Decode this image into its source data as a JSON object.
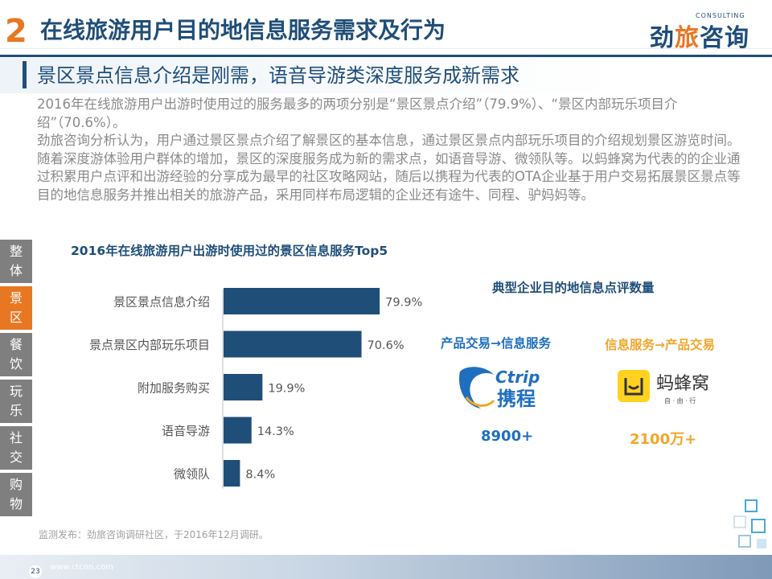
{
  "header": {
    "section_number": "2",
    "title": "在线旅游用户目的地信息服务需求及行为",
    "logo_text_a": "劲",
    "logo_text_b": "旅",
    "logo_text_c": "咨询",
    "logo_en": "CONSULTING"
  },
  "subtitle": "景区景点信息介绍是刚需，语音导游类深度服务成新需求",
  "body_paragraphs": [
    "2016年在线旅游用户出游时使用过的服务最多的两项分别是“景区景点介绍”（79.9%）、“景区内部玩乐项目介绍”（70.6%）。",
    "劲旅咨询分析认为，用户通过景区景点介绍了解景区的基本信息，通过景区景点内部玩乐项目的介绍规划景区游览时间。随着深度游体验用户群体的增加，景区的深度服务成为新的需求点，如语音导游、微领队等。以蚂蜂窝为代表的的企业通过积累用户点评和出游经验的分享成为最早的社区攻略网站，随后以携程为代表的OTA企业基于用户交易拓展景区景点等目的地信息服务并推出相关的旅游产品，采用同样布局逻辑的企业还有途牛、同程、驴妈妈等。"
  ],
  "sidebar": {
    "items": [
      {
        "label": "整体",
        "active": false
      },
      {
        "label": "景区",
        "active": true
      },
      {
        "label": "餐饮",
        "active": false
      },
      {
        "label": "玩乐",
        "active": false
      },
      {
        "label": "社交",
        "active": false
      },
      {
        "label": "购物",
        "active": false
      }
    ]
  },
  "chart_data": {
    "type": "bar",
    "orientation": "horizontal",
    "title": "2016年在线旅游用户出游时使用过的景区信息服务Top5",
    "categories": [
      "景区景点信息介绍",
      "景点景区内部玩乐项目",
      "附加服务购买",
      "语音导游",
      "微领队"
    ],
    "values": [
      79.9,
      70.6,
      19.9,
      14.3,
      8.4
    ],
    "value_labels": [
      "79.9%",
      "70.6%",
      "19.9%",
      "14.3%",
      "8.4%"
    ],
    "xlim": [
      0,
      100
    ],
    "grid": false,
    "bar_color": "#1f4e79"
  },
  "right_panel": {
    "title": "典型企业目的地信息点评数量",
    "ctrip": {
      "flow_label": "产品交易→信息服务",
      "logo_text_en": "Ctrip",
      "logo_text_cn": "携程",
      "count": "8900+"
    },
    "mafengwo": {
      "flow_label": "信息服务→产品交易",
      "logo_text_cn": "蚂蜂窝",
      "logo_sub": "自 · 由 · 行",
      "count": "2100万+"
    }
  },
  "source_note": "监测发布：劲旅咨询调研社区，于2016年12月调研。",
  "footer": {
    "website": "www.ctcnn.com",
    "page_number": "23"
  },
  "colors": {
    "primary": "#1f4e79",
    "accent": "#e87722",
    "ctrip_blue": "#1f6fbf",
    "mfw_yellow": "#f2a62a"
  }
}
